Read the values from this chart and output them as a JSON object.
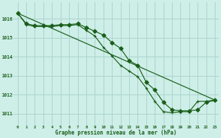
{
  "title": "Graphe pression niveau de la mer (hPa)",
  "bg_color": "#ceeee8",
  "grid_color": "#a8d4cc",
  "line_color": "#1a5f1a",
  "xlim": [
    -0.5,
    23.5
  ],
  "ylim": [
    1010.4,
    1016.9
  ],
  "xticks": [
    0,
    1,
    2,
    3,
    4,
    5,
    6,
    7,
    8,
    9,
    10,
    11,
    12,
    13,
    14,
    15,
    16,
    17,
    18,
    19,
    20,
    21,
    22,
    23
  ],
  "yticks": [
    1011,
    1012,
    1013,
    1014,
    1015,
    1016
  ],
  "series1_x": [
    0,
    1,
    2,
    3,
    4,
    5,
    6,
    7,
    8,
    9,
    10,
    11,
    12,
    13,
    14,
    15,
    16,
    17,
    18,
    19,
    20,
    21,
    22,
    23
  ],
  "series1_y": [
    1016.3,
    1015.75,
    1015.65,
    1015.65,
    1015.65,
    1015.7,
    1015.7,
    1015.75,
    1015.55,
    1015.35,
    1015.15,
    1014.75,
    1014.45,
    1013.8,
    1013.55,
    1012.65,
    1012.25,
    1011.6,
    1011.2,
    1011.15,
    1011.15,
    1011.2,
    1011.6,
    1011.7
  ],
  "series2_x": [
    0,
    1,
    2,
    3,
    4,
    5,
    6,
    7,
    8,
    9,
    10,
    11,
    12,
    13,
    14,
    15,
    16,
    17,
    18,
    19,
    20,
    21,
    22,
    23
  ],
  "series2_y": [
    1016.3,
    1015.7,
    1015.6,
    1015.6,
    1015.6,
    1015.65,
    1015.65,
    1015.7,
    1015.4,
    1015.1,
    1014.5,
    1014.05,
    1013.55,
    1013.25,
    1012.95,
    1012.35,
    1011.65,
    1011.1,
    1011.05,
    1011.1,
    1011.1,
    1011.65,
    1011.65,
    1011.72
  ],
  "series3_x": [
    0,
    23
  ],
  "series3_y": [
    1016.3,
    1011.72
  ],
  "marker_x": [
    1,
    2,
    3,
    4,
    5,
    6,
    7,
    8,
    9,
    10,
    11,
    12,
    13,
    14,
    15,
    16,
    17,
    18,
    19,
    20,
    21,
    22,
    23
  ],
  "marker1_y": [
    1015.75,
    1015.65,
    1015.65,
    1015.65,
    1015.7,
    1015.7,
    1015.75,
    1015.55,
    1015.35,
    1015.15,
    1014.75,
    1014.45,
    1013.8,
    1013.55,
    1012.65,
    1012.25,
    1011.6,
    1011.2,
    1011.15,
    1011.15,
    1011.2,
    1011.6,
    1011.7
  ],
  "marker2_y": [
    1015.7,
    1015.6,
    1015.6,
    1015.6,
    1015.65,
    1015.65,
    1015.7,
    1015.4,
    1015.1,
    1014.5,
    1014.05,
    1013.55,
    1013.25,
    1012.95,
    1012.35,
    1011.65,
    1011.1,
    1011.05,
    1011.1,
    1011.1,
    1011.65,
    1011.65,
    1011.72
  ]
}
